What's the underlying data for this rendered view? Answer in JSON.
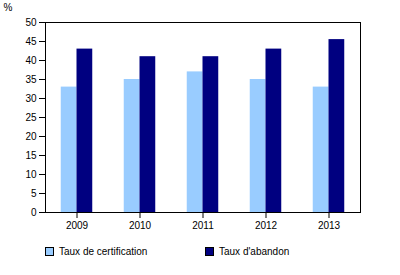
{
  "chart_data": {
    "type": "bar",
    "ylabel": "%",
    "categories": [
      "2009",
      "2010",
      "2011",
      "2012",
      "2013"
    ],
    "series": [
      {
        "name": "Taux de certification",
        "color": "#99ccff",
        "values": [
          33,
          35,
          37,
          35,
          33
        ]
      },
      {
        "name": "Taux d'abandon",
        "color": "#000080",
        "values": [
          43,
          41,
          41,
          43,
          45.5
        ]
      }
    ],
    "ylim": [
      0,
      50
    ],
    "yticks": [
      0,
      5,
      10,
      15,
      20,
      25,
      30,
      35,
      40,
      45,
      50
    ],
    "grid": false,
    "legend": "bottom"
  }
}
